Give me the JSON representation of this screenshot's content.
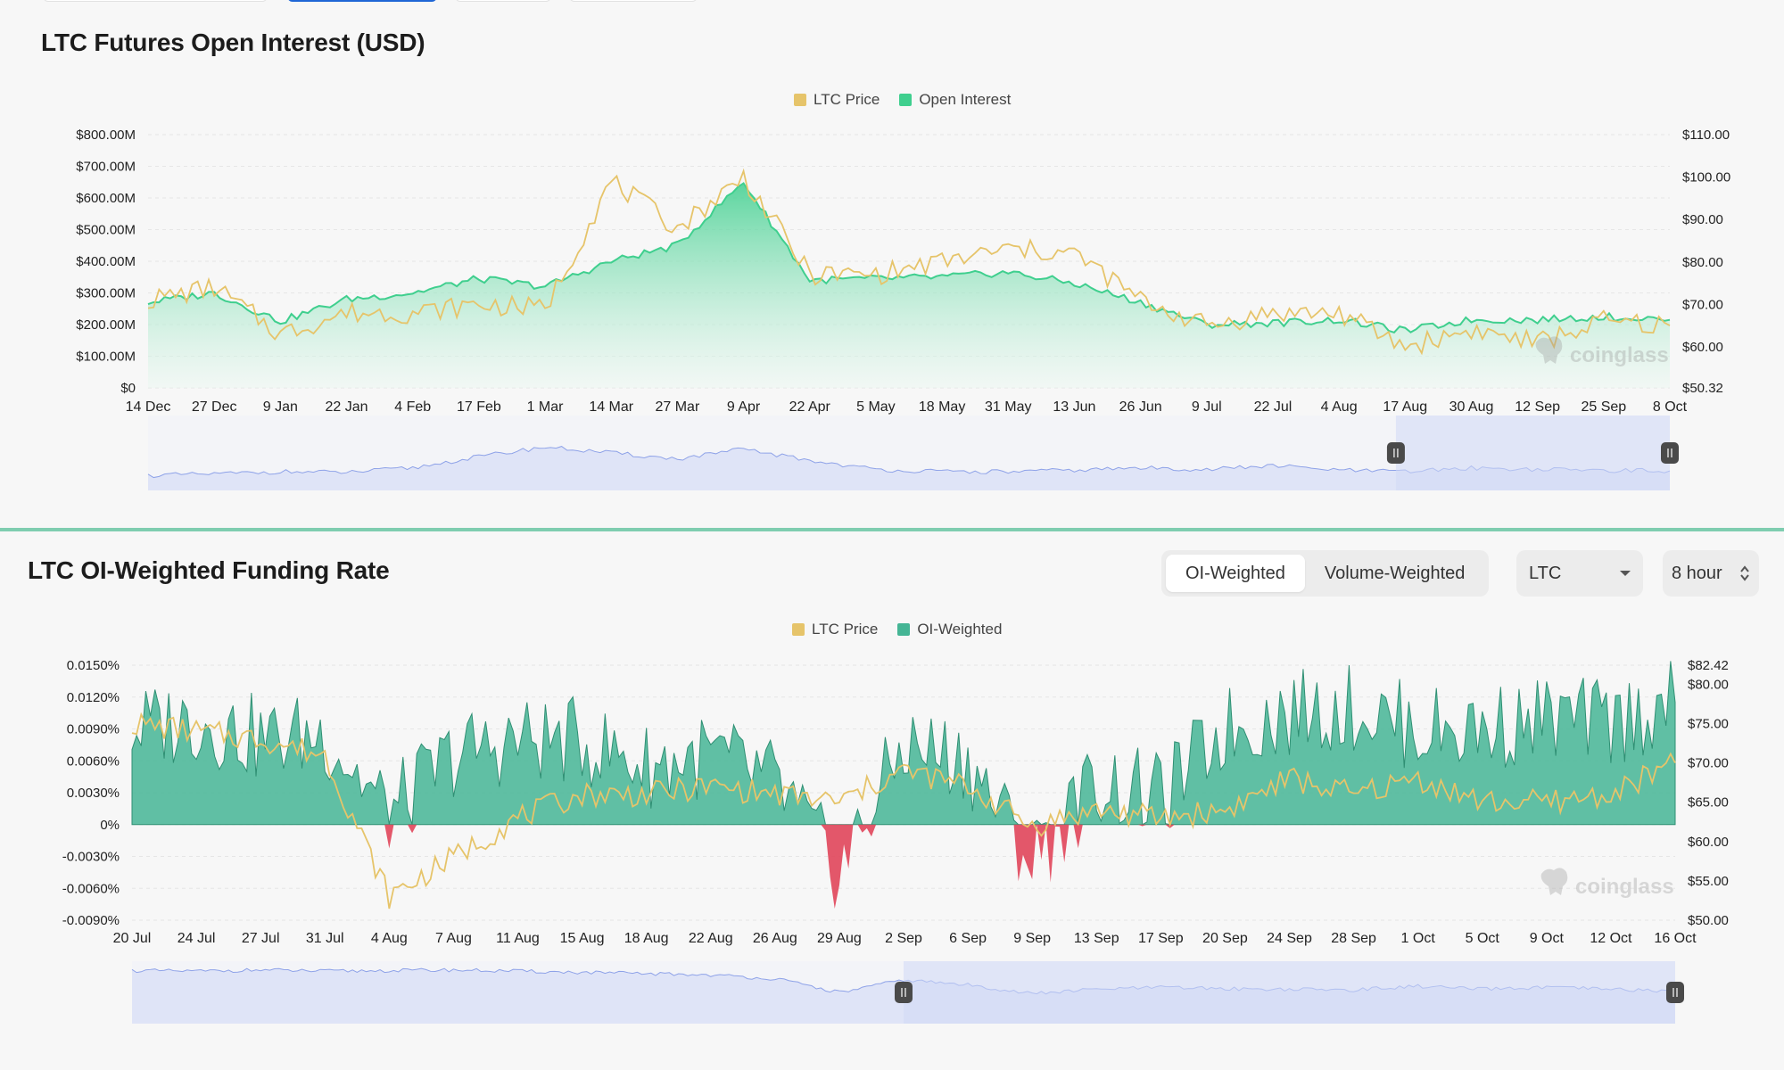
{
  "colors": {
    "price": "#e6c46a",
    "open_interest": "#3fcf8e",
    "oi_weighted": "#45b595",
    "negative": "#e0455a",
    "slider_line": "#8ea2e8",
    "slider_fill": "#dfe4f7",
    "slider_selected": "#cfd8f6"
  },
  "watermark": "coinglass",
  "oi_panel": {
    "title": "LTC Futures Open Interest (USD)",
    "legend": [
      "LTC Price",
      "Open Interest"
    ]
  },
  "funding_panel": {
    "title": "LTC OI-Weighted Funding Rate",
    "legend": [
      "LTC Price",
      "OI-Weighted"
    ],
    "toggle": {
      "options": [
        "OI-Weighted",
        "Volume-Weighted"
      ],
      "selected": "OI-Weighted"
    },
    "coin_select": {
      "value": "LTC"
    },
    "interval_select": {
      "value": "8 hour"
    }
  },
  "chart_data": [
    {
      "type": "area",
      "title": "LTC Futures Open Interest (USD)",
      "categories": [
        "14 Dec",
        "27 Dec",
        "9 Jan",
        "22 Jan",
        "4 Feb",
        "17 Feb",
        "1 Mar",
        "14 Mar",
        "27 Mar",
        "9 Apr",
        "22 Apr",
        "5 May",
        "18 May",
        "31 May",
        "13 Jun",
        "26 Jun",
        "9 Jul",
        "22 Jul",
        "4 Aug",
        "17 Aug",
        "30 Aug",
        "12 Sep",
        "25 Sep",
        "8 Oct"
      ],
      "y_left": {
        "ticks": [
          "$0",
          "$100.00M",
          "$200.00M",
          "$300.00M",
          "$400.00M",
          "$500.00M",
          "$600.00M",
          "$700.00M",
          "$800.00M"
        ],
        "range": [
          0,
          800
        ]
      },
      "y_right": {
        "ticks": [
          "$50.32",
          "$60.00",
          "$70.00",
          "$80.00",
          "$90.00",
          "$100.00",
          "$110.00"
        ],
        "range": [
          50.32,
          110
        ]
      },
      "series": [
        {
          "name": "Open Interest",
          "axis": "left",
          "values": [
            270,
            300,
            210,
            280,
            300,
            345,
            320,
            400,
            450,
            650,
            340,
            345,
            350,
            365,
            330,
            270,
            200,
            205,
            215,
            180,
            215,
            215,
            225,
            215
          ]
        },
        {
          "name": "LTC Price",
          "axis": "right",
          "values": [
            71,
            74,
            63,
            68,
            68,
            70,
            69,
            99,
            88,
            100,
            77,
            77,
            80,
            83,
            82,
            71,
            65,
            68,
            68,
            60,
            64,
            61,
            66,
            65
          ]
        }
      ],
      "slider": {
        "selected_range": [
          0.82,
          1.0
        ],
        "values": [
          0.2,
          0.22,
          0.25,
          0.24,
          0.3,
          0.45,
          0.58,
          0.5,
          0.42,
          0.55,
          0.4,
          0.28,
          0.25,
          0.25,
          0.27,
          0.3,
          0.28,
          0.33,
          0.27,
          0.25,
          0.3,
          0.28,
          0.27,
          0.26
        ]
      }
    },
    {
      "type": "area",
      "title": "LTC OI-Weighted Funding Rate",
      "categories": [
        "20 Jul",
        "24 Jul",
        "27 Jul",
        "31 Jul",
        "4 Aug",
        "7 Aug",
        "11 Aug",
        "15 Aug",
        "18 Aug",
        "22 Aug",
        "26 Aug",
        "29 Aug",
        "2 Sep",
        "6 Sep",
        "9 Sep",
        "13 Sep",
        "17 Sep",
        "20 Sep",
        "24 Sep",
        "28 Sep",
        "1 Oct",
        "5 Oct",
        "9 Oct",
        "12 Oct",
        "16 Oct"
      ],
      "y_left": {
        "ticks": [
          "-0.0090%",
          "-0.0060%",
          "-0.0030%",
          "0%",
          "0.0030%",
          "0.0060%",
          "0.0090%",
          "0.0120%",
          "0.0150%"
        ],
        "range": [
          -0.009,
          0.015
        ]
      },
      "y_right": {
        "ticks": [
          "$50.00",
          "$55.00",
          "$60.00",
          "$65.00",
          "$70.00",
          "$75.00",
          "$80.00",
          "$82.42"
        ],
        "range": [
          50,
          82.42
        ]
      },
      "series": [
        {
          "name": "OI-Weighted",
          "axis": "left",
          "values": [
            0.009,
            0.0098,
            0.008,
            0.0085,
            0.001,
            0.0065,
            0.008,
            0.0078,
            0.0055,
            0.0065,
            0.004,
            -0.0045,
            0.0075,
            0.006,
            -0.0035,
            0.004,
            0.0025,
            0.009,
            0.0105,
            0.011,
            0.009,
            0.009,
            0.01,
            0.0095,
            0.0115
          ]
        },
        {
          "name": "LTC Price",
          "axis": "right",
          "values": [
            75,
            74,
            73,
            71,
            53,
            58,
            63,
            66,
            66,
            67,
            66,
            65,
            69,
            67,
            62,
            64,
            63,
            64,
            68,
            66,
            68,
            65,
            65,
            66,
            70
          ]
        }
      ],
      "slider": {
        "selected_range": [
          0.5,
          1.0
        ],
        "values": [
          0.85,
          0.84,
          0.86,
          0.84,
          0.85,
          0.86,
          0.84,
          0.82,
          0.8,
          0.78,
          0.72,
          0.5,
          0.7,
          0.62,
          0.48,
          0.55,
          0.58,
          0.56,
          0.55,
          0.54,
          0.6,
          0.55,
          0.58,
          0.55,
          0.52
        ]
      }
    }
  ]
}
